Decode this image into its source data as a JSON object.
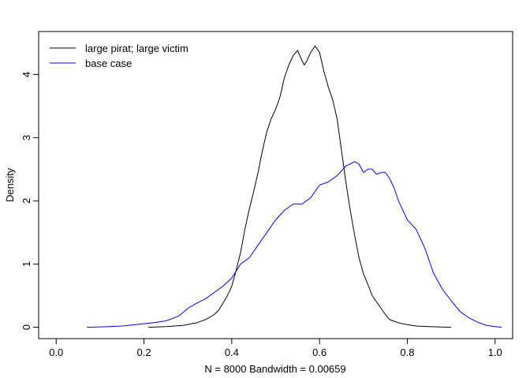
{
  "chart_data": {
    "type": "line",
    "title": "",
    "xlabel": "N = 8000   Bandwidth = 0.00659",
    "ylabel": "Density",
    "xlim": [
      -0.04,
      1.04
    ],
    "ylim": [
      -0.18,
      4.68
    ],
    "x_ticks": [
      0.0,
      0.2,
      0.4,
      0.6,
      0.8,
      1.0
    ],
    "x_tick_labels": [
      "0.0",
      "0.2",
      "0.4",
      "0.6",
      "0.8",
      "1.0"
    ],
    "y_ticks": [
      0,
      1,
      2,
      3,
      4
    ],
    "y_tick_labels": [
      "0",
      "1",
      "2",
      "3",
      "4"
    ],
    "grid": false,
    "legend_position": "top-left",
    "series": [
      {
        "name": "large pirat; large victim",
        "color": "#000000",
        "x": [
          0.21,
          0.25,
          0.29,
          0.32,
          0.34,
          0.36,
          0.37,
          0.38,
          0.39,
          0.4,
          0.41,
          0.42,
          0.43,
          0.44,
          0.45,
          0.46,
          0.47,
          0.48,
          0.49,
          0.5,
          0.51,
          0.52,
          0.53,
          0.54,
          0.55,
          0.56,
          0.565,
          0.57,
          0.58,
          0.59,
          0.6,
          0.61,
          0.62,
          0.63,
          0.64,
          0.65,
          0.66,
          0.67,
          0.68,
          0.69,
          0.7,
          0.71,
          0.72,
          0.73,
          0.74,
          0.75,
          0.76,
          0.78,
          0.8,
          0.82,
          0.85,
          0.9
        ],
        "y": [
          0.0,
          0.01,
          0.03,
          0.07,
          0.12,
          0.2,
          0.27,
          0.38,
          0.5,
          0.65,
          0.9,
          1.18,
          1.55,
          1.87,
          2.15,
          2.45,
          2.8,
          3.1,
          3.3,
          3.45,
          3.65,
          3.95,
          4.15,
          4.3,
          4.38,
          4.22,
          4.15,
          4.2,
          4.35,
          4.45,
          4.35,
          4.05,
          3.8,
          3.6,
          3.3,
          2.8,
          2.3,
          1.85,
          1.45,
          1.1,
          0.85,
          0.68,
          0.5,
          0.4,
          0.3,
          0.2,
          0.12,
          0.07,
          0.04,
          0.02,
          0.01,
          0.0
        ]
      },
      {
        "name": "base case",
        "color": "#0000ff",
        "x": [
          0.07,
          0.12,
          0.15,
          0.18,
          0.22,
          0.25,
          0.28,
          0.3,
          0.32,
          0.34,
          0.36,
          0.38,
          0.4,
          0.42,
          0.44,
          0.46,
          0.48,
          0.5,
          0.52,
          0.54,
          0.56,
          0.58,
          0.6,
          0.62,
          0.64,
          0.66,
          0.68,
          0.69,
          0.7,
          0.71,
          0.72,
          0.73,
          0.74,
          0.75,
          0.76,
          0.77,
          0.78,
          0.8,
          0.82,
          0.84,
          0.86,
          0.88,
          0.9,
          0.92,
          0.94,
          0.96,
          0.98,
          1.0,
          1.015
        ],
        "y": [
          0.0,
          0.01,
          0.02,
          0.04,
          0.07,
          0.1,
          0.18,
          0.3,
          0.38,
          0.45,
          0.55,
          0.65,
          0.78,
          1.0,
          1.1,
          1.3,
          1.5,
          1.7,
          1.85,
          1.95,
          1.95,
          2.05,
          2.25,
          2.3,
          2.4,
          2.55,
          2.62,
          2.58,
          2.45,
          2.5,
          2.5,
          2.42,
          2.45,
          2.45,
          2.35,
          2.2,
          2.0,
          1.7,
          1.55,
          1.25,
          0.85,
          0.6,
          0.42,
          0.25,
          0.15,
          0.08,
          0.03,
          0.01,
          0.0
        ]
      }
    ]
  }
}
